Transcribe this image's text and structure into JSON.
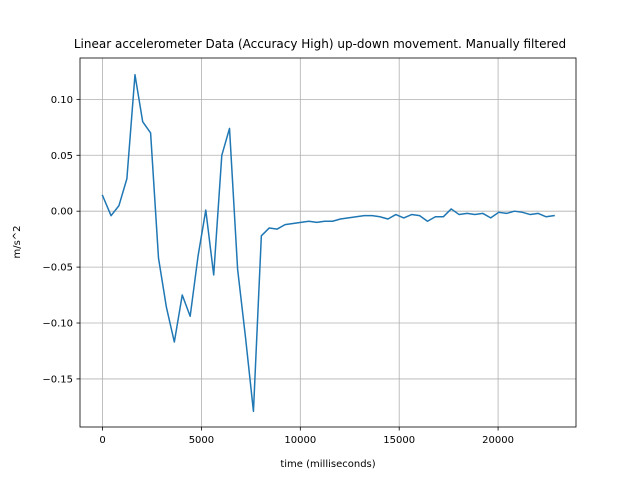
{
  "chart_data": {
    "type": "line",
    "title": "Linear accelerometer Data (Accuracy High) up-down movement. Manually filtered",
    "xlabel": "time (milliseconds)",
    "ylabel": "m/s^2",
    "xlim": [
      -1140,
      23940
    ],
    "ylim": [
      -0.193,
      0.137
    ],
    "grid": true,
    "x_ticks": [
      0,
      5000,
      10000,
      15000,
      20000
    ],
    "x_tick_labels": [
      "0",
      "5000",
      "10000",
      "15000",
      "20000"
    ],
    "y_ticks": [
      0.1,
      0.05,
      0.0,
      -0.05,
      -0.1,
      -0.15
    ],
    "y_tick_labels": [
      "0.10",
      "0.05",
      "0.00",
      "−0.05",
      "−0.10",
      "−0.15"
    ],
    "series": [
      {
        "color": "#1f77b4",
        "x": [
          0,
          430,
          830,
          1230,
          1640,
          2030,
          2430,
          2830,
          3230,
          3630,
          4030,
          4430,
          4830,
          5220,
          5620,
          6030,
          6420,
          6830,
          7230,
          7630,
          8030,
          8430,
          8830,
          9230,
          9630,
          10030,
          10430,
          10830,
          11230,
          11630,
          12030,
          12430,
          12830,
          13230,
          13630,
          14030,
          14430,
          14830,
          15230,
          15630,
          16030,
          16430,
          16830,
          17230,
          17630,
          18030,
          18430,
          18830,
          19230,
          19630,
          20030,
          20430,
          20830,
          21230,
          21630,
          22030,
          22430,
          22830
        ],
        "y": [
          0.014,
          -0.004,
          0.005,
          0.029,
          0.122,
          0.08,
          0.07,
          -0.042,
          -0.086,
          -0.117,
          -0.075,
          -0.094,
          -0.04,
          0.001,
          -0.057,
          0.05,
          0.074,
          -0.052,
          -0.113,
          -0.179,
          -0.022,
          -0.015,
          -0.016,
          -0.012,
          -0.011,
          -0.01,
          -0.009,
          -0.01,
          -0.009,
          -0.009,
          -0.007,
          -0.006,
          -0.005,
          -0.004,
          -0.004,
          -0.005,
          -0.007,
          -0.003,
          -0.006,
          -0.003,
          -0.004,
          -0.009,
          -0.005,
          -0.005,
          0.002,
          -0.003,
          -0.002,
          -0.003,
          -0.002,
          -0.006,
          -0.001,
          -0.002,
          0.0,
          -0.001,
          -0.003,
          -0.002,
          -0.005,
          -0.004
        ]
      }
    ]
  }
}
